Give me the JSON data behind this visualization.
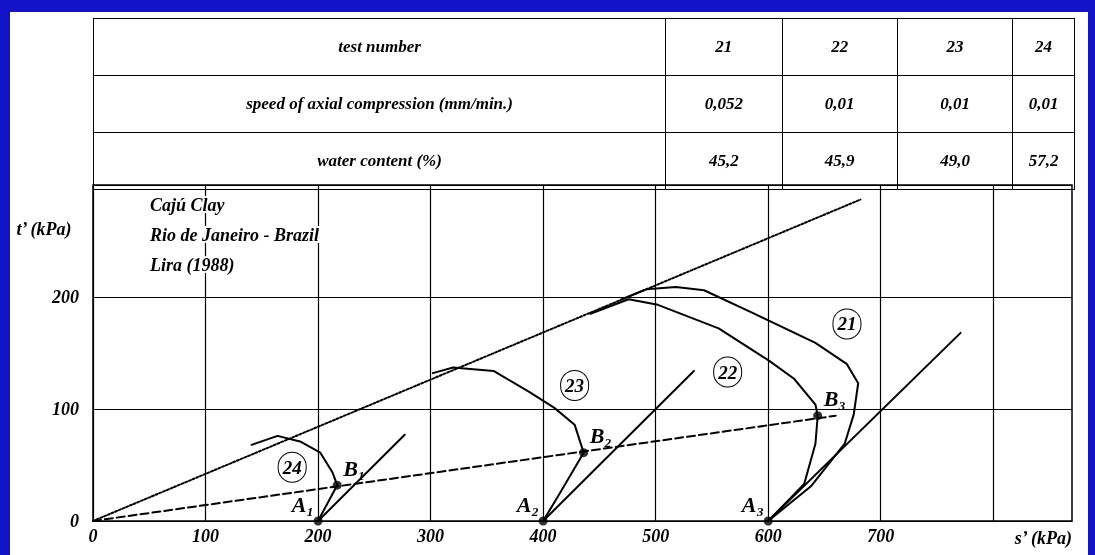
{
  "chart_data": {
    "type": "line",
    "title": "Cajú Clay\nRio de Janeiro - Brazil\nLira (1988)",
    "xlabel": "s’ (kPa)",
    "ylabel": "t’ (kPa)",
    "xlim": [
      0,
      870
    ],
    "xticks": [
      0,
      100,
      200,
      300,
      400,
      500,
      600,
      700,
      {
        "value": 800,
        "label": null
      }
    ],
    "ylim": [
      0,
      300
    ],
    "yticks": [
      0,
      100,
      200,
      {
        "value": 300,
        "label": null
      }
    ],
    "grid": true,
    "marker": "none",
    "annotations": [
      "test  number",
      "21",
      "22",
      "23",
      "24",
      "speed  of  axial compression (mm/min.)",
      "0,052",
      "0,01",
      "0,01",
      "0,01",
      "water content  (%)",
      "45,2",
      "45,9",
      "49,0",
      "57,2",
      {
        "text": "21",
        "x": 670,
        "y": 176
      },
      {
        "text": "22",
        "x": 564,
        "y": 133
      },
      {
        "text": "23",
        "x": 428,
        "y": 121
      },
      {
        "text": "24",
        "x": 177,
        "y": 48
      },
      {
        "text": "A₁",
        "x": 200,
        "y": 0
      },
      {
        "text": "A₂",
        "x": 400,
        "y": 0
      },
      {
        "text": "A₃",
        "x": 600,
        "y": 0
      },
      {
        "text": "B₁",
        "x": 217,
        "y": 32
      },
      {
        "text": "B₂",
        "x": 436,
        "y": 61
      },
      {
        "text": "B₃",
        "x": 644,
        "y": 94
      }
    ],
    "series": [
      {
        "color": "#000000",
        "line_style": "dotted",
        "x": [
          0,
          682
        ],
        "values": [
          0,
          287
        ]
      },
      {
        "color": "#000000",
        "line_style": "dashed",
        "x": [
          0,
          660
        ],
        "values": [
          0,
          94
        ]
      },
      {
        "color": "#000000",
        "line_style": "solid",
        "x": [
          200,
          277
        ],
        "values": [
          0,
          77
        ]
      },
      {
        "color": "#000000",
        "line_style": "solid",
        "x": [
          400,
          534
        ],
        "values": [
          0,
          134
        ]
      },
      {
        "color": "#000000",
        "line_style": "solid",
        "x": [
          600,
          771
        ],
        "values": [
          0,
          168
        ]
      },
      {
        "color": "#000000",
        "line_style": "solid",
        "x": [
          600,
          638,
          668,
          676,
          680,
          670,
          642,
          588,
          543,
          518,
          492,
          470
        ],
        "values": [
          0,
          31,
          69,
          95,
          123,
          140,
          159,
          185,
          206,
          209,
          207,
          198
        ]
      },
      {
        "color": "#000000",
        "line_style": "solid",
        "x": [
          600,
          632,
          642,
          644,
          642,
          623,
          601,
          556,
          502,
          476,
          442
        ],
        "values": [
          0,
          33,
          69,
          94,
          104,
          127,
          143,
          172,
          193,
          198,
          185
        ]
      },
      {
        "color": "#000000",
        "line_style": "solid",
        "x": [
          400,
          415,
          436,
          428,
          410,
          388,
          356,
          320,
          302
        ],
        "values": [
          0,
          25,
          61,
          86,
          101,
          115,
          134,
          137,
          132
        ]
      },
      {
        "color": "#000000",
        "line_style": "solid",
        "x": [
          200,
          217,
          213,
          202,
          184,
          164,
          141
        ],
        "values": [
          0,
          32,
          43,
          61,
          71,
          76,
          68
        ]
      },
      {
        "type": "scatter",
        "color": "#000000",
        "marker": "circle",
        "x": [
          200,
          400,
          600,
          217,
          436,
          644
        ],
        "values": [
          0,
          0,
          0,
          32,
          61,
          94
        ]
      }
    ]
  }
}
